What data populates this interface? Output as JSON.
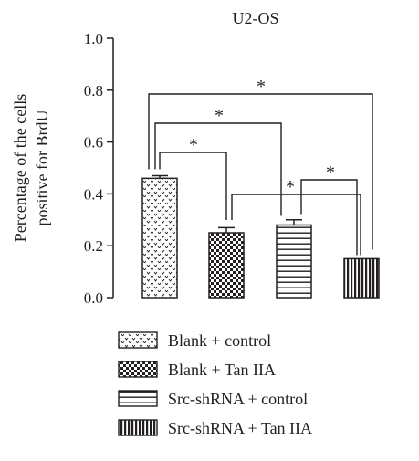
{
  "chart_data": {
    "type": "bar",
    "title": "U2-OS",
    "ylabel_lines": [
      "Percentage of the cells",
      "positive for BrdU"
    ],
    "xlabel": "",
    "ylim": [
      0,
      1.0
    ],
    "yticks": [
      "0.0",
      "0.2",
      "0.4",
      "0.6",
      "0.8",
      "1.0"
    ],
    "grid": false,
    "legend_position": "bottom",
    "series": [
      {
        "name": "Blank + control",
        "value": 0.46,
        "error": 0.01,
        "pattern": "chevron-dots"
      },
      {
        "name": "Blank + Tan IIA",
        "value": 0.25,
        "error": 0.02,
        "pattern": "checkerboard"
      },
      {
        "name": "Src-shRNA + control",
        "value": 0.28,
        "error": 0.02,
        "pattern": "horizontal-lines"
      },
      {
        "name": "Src-shRNA + Tan IIA",
        "value": 0.15,
        "error": 0.0,
        "pattern": "vertical-lines"
      }
    ],
    "significance": [
      {
        "from": 0,
        "to": 3,
        "label": "*"
      },
      {
        "from": 0,
        "to": 2,
        "label": "*"
      },
      {
        "from": 0,
        "to": 1,
        "label": "*"
      },
      {
        "from": 1,
        "to": 3,
        "label": "*"
      },
      {
        "from": 2,
        "to": 3,
        "label": "*"
      }
    ]
  },
  "colors": {
    "ink": "#231f20",
    "background": "#ffffff"
  }
}
